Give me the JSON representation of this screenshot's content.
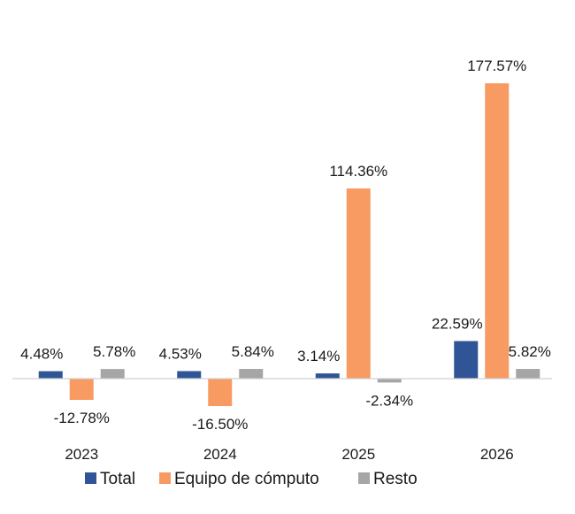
{
  "chart_data": {
    "type": "bar",
    "categories": [
      "2023",
      "2024",
      "2025",
      "2026"
    ],
    "series": [
      {
        "name": "Total",
        "color": "#2F5597",
        "values": [
          4.48,
          4.53,
          3.14,
          22.59
        ],
        "labels": [
          "4.48%",
          "4.53%",
          "3.14%",
          "22.59%"
        ]
      },
      {
        "name": "Equipo de cómputo",
        "color": "#F79B63",
        "values": [
          -12.78,
          -16.5,
          114.36,
          177.57
        ],
        "labels": [
          "-12.78%",
          "-16.50%",
          "114.36%",
          "177.57%"
        ]
      },
      {
        "name": "Resto",
        "color": "#A6A6A6",
        "values": [
          5.78,
          5.84,
          -2.34,
          5.82
        ],
        "labels": [
          "5.78%",
          "5.84%",
          "-2.34%",
          "5.82%"
        ]
      }
    ],
    "ylim": [
      -30,
      190
    ],
    "grid": false,
    "legend_position": "bottom"
  }
}
